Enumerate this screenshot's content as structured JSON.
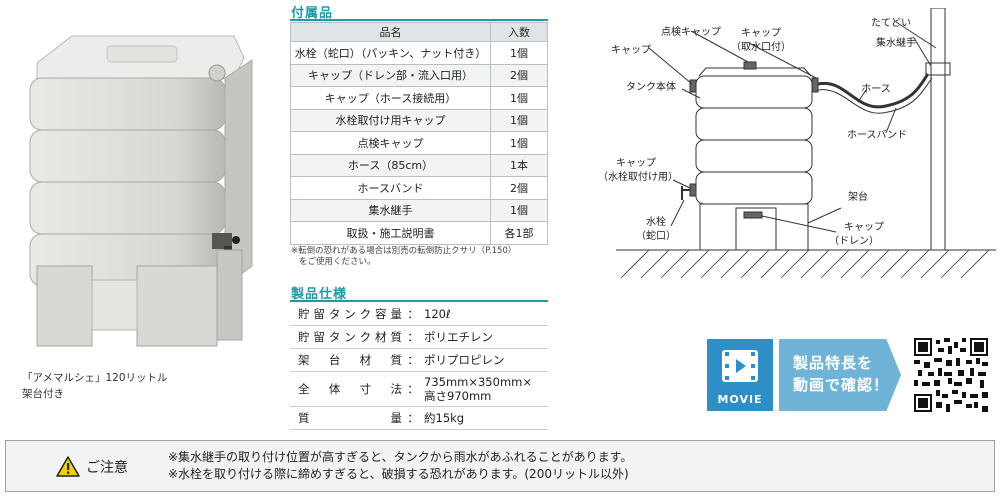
{
  "photo": {
    "caption_line1": "「アメマルシェ」120リットル",
    "caption_line2": "架台付き"
  },
  "accessories": {
    "heading": "付属品",
    "col_name": "品名",
    "col_qty": "入数",
    "rows": [
      {
        "name": "水栓（蛇口）（パッキン、ナット付き）",
        "qty": "1個"
      },
      {
        "name": "キャップ（ドレン部・流入口用）",
        "qty": "2個"
      },
      {
        "name": "キャップ（ホース接続用）",
        "qty": "1個"
      },
      {
        "name": "水栓取付け用キャップ",
        "qty": "1個"
      },
      {
        "name": "点検キャップ",
        "qty": "1個"
      },
      {
        "name": "ホース（85cm）",
        "qty": "1本"
      },
      {
        "name": "ホースバンド",
        "qty": "2個"
      },
      {
        "name": "集水継手",
        "qty": "1個"
      },
      {
        "name": "取扱・施工説明書",
        "qty": "各1部"
      }
    ],
    "note_line1": "※転倒の恐れがある場合は別売の転倒防止クサリ（P.150）",
    "note_line2": "をご使用ください。"
  },
  "specs": {
    "heading": "製品仕様",
    "rows": [
      {
        "label": [
          "貯",
          "留",
          "タ",
          "ン",
          "ク",
          "容",
          "量"
        ],
        "colon": "：",
        "value": "120ℓ",
        "value2": ""
      },
      {
        "label": [
          "貯",
          "留",
          "タ",
          "ン",
          "ク",
          "材",
          "質"
        ],
        "colon": "：",
        "value": "ポリエチレン",
        "value2": ""
      },
      {
        "label": [
          "架",
          "台",
          "材",
          "質"
        ],
        "colon": "：",
        "value": "ポリプロピレン",
        "value2": ""
      },
      {
        "label": [
          "全",
          "体",
          "寸",
          "法"
        ],
        "colon": "：",
        "value": "735mm×350mm×",
        "value2": "高さ970mm"
      },
      {
        "label": [
          "質",
          "量"
        ],
        "colon": "：",
        "value": "約15kg",
        "value2": ""
      }
    ]
  },
  "diagram": {
    "labels": {
      "inspection_cap": "点検キャップ",
      "cap_top": "キャップ",
      "cap_intake": "キャップ",
      "cap_intake_sub": "（取水口付）",
      "tank_body": "タンク本体",
      "downspout": "たてどい",
      "collector": "集水継手",
      "hose": "ホース",
      "hose_band": "ホースバンド",
      "cap_faucet": "キャップ",
      "cap_faucet_sub": "（水栓取付け用）",
      "stand": "架台",
      "faucet": "水栓",
      "faucet_sub": "（蛇口）",
      "cap_drain": "キャップ",
      "cap_drain_sub": "（ドレン）"
    }
  },
  "movie": {
    "label": "MOVIE",
    "text_line1": "製品特長を",
    "text_line2": "動画で確認！",
    "accent": "#2e8ec7"
  },
  "caution": {
    "title": "ご注意",
    "line1": "※集水継手の取り付け位置が高すぎると、タンクから雨水があふれることがあります。",
    "line2": "※水栓を取り付ける際に締めすぎると、破損する恐れがあります。(200リットル以外)"
  }
}
